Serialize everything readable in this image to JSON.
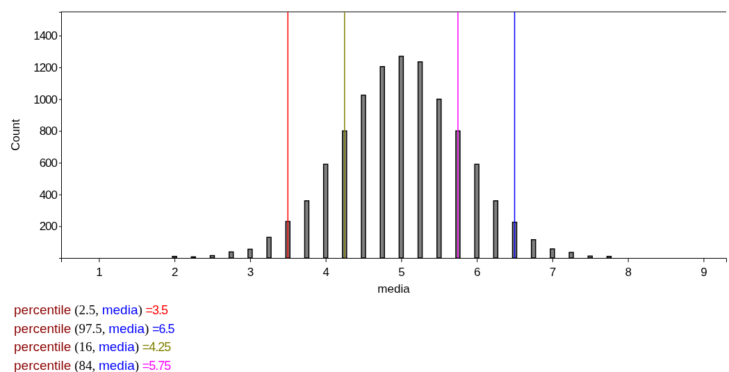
{
  "chart_data": {
    "type": "bar",
    "xlabel": "media",
    "ylabel": "Count",
    "x": [
      2,
      2.25,
      2.5,
      2.75,
      3,
      3.25,
      3.5,
      3.75,
      4,
      4.25,
      4.5,
      4.75,
      5,
      5.25,
      5.5,
      5.75,
      6,
      6.25,
      6.5,
      6.75,
      7,
      7.25,
      7.5,
      7.75
    ],
    "values": [
      10,
      7,
      15,
      38,
      55,
      130,
      230,
      360,
      590,
      800,
      1025,
      1205,
      1270,
      1235,
      1000,
      800,
      590,
      360,
      225,
      115,
      57,
      35,
      12,
      10
    ],
    "color": "#808080",
    "xlim": [
      0.5,
      9.3
    ],
    "xticks": [
      1,
      2,
      3,
      4,
      5,
      6,
      7,
      8,
      9
    ],
    "ylim": [
      0,
      1550
    ],
    "yticks": [
      200,
      400,
      600,
      800,
      1000,
      1200,
      1400
    ],
    "grid": false,
    "ref_lines": [
      {
        "axis": "x",
        "value": 3.5,
        "color": "#ff0000"
      },
      {
        "axis": "x",
        "value": 6.5,
        "color": "#0000ff"
      },
      {
        "axis": "x",
        "value": 4.25,
        "color": "#808000"
      },
      {
        "axis": "x",
        "value": 5.75,
        "color": "#ff00ff"
      }
    ],
    "annotations": [
      "percentile (2.5, media) =3.5",
      "percentile (97.5, media) =6.5",
      "percentile (16, media) =4.25",
      "percentile (84, media) =5.75"
    ]
  }
}
